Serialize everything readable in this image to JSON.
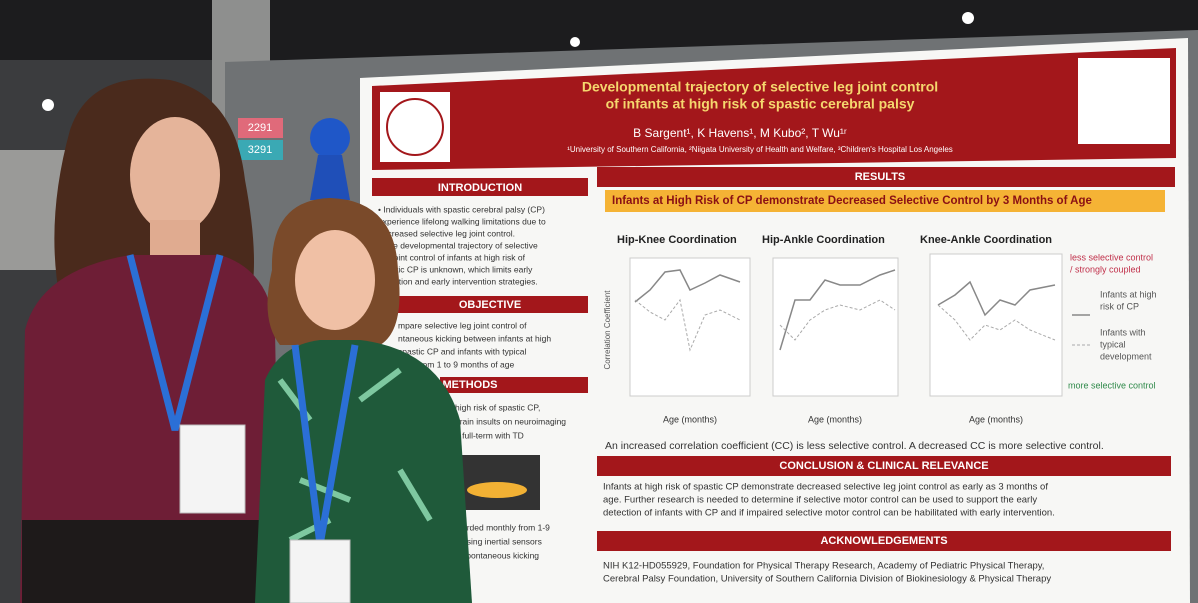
{
  "booth_numbers": [
    "2291",
    "3291"
  ],
  "poster": {
    "title": [
      "Developmental trajectory of selective leg joint control",
      "of infants at high risk of spastic cerebral palsy"
    ],
    "authors": "B Sargent¹, K Havens¹, M Kubo², T Wu¹ʳ",
    "affiliations": "¹University of Southern California, ²Niigata University of Health and Welfare, ³Children's Hospital Los Angeles",
    "introduction": {
      "heading": "INTRODUCTION",
      "lines": [
        "• Individuals with spastic cerebral palsy (CP)",
        "experience lifelong walking limitations due to",
        "decreased selective leg joint control.",
        "• The developmental trajectory of selective",
        "leg joint control of infants at high risk of",
        "spastic CP is unknown, which limits early",
        "detection and early intervention strategies."
      ]
    },
    "objective": {
      "heading": "OBJECTIVE",
      "lines": [
        "mpare selective leg joint control of",
        "ntaneous kicking between infants at high",
        "spastic CP and infants with typical",
        "(TD) from 1 to 9 months of age"
      ]
    },
    "methods": {
      "heading": "METHODS",
      "lines": [
        "high risk of spastic CP,",
        "brain insults on neuroimaging",
        "n full-term with TD"
      ],
      "lines_after_image": [
        "orded monthly from 1-9",
        "using inertial sensors",
        "spontaneous kicking"
      ]
    },
    "results": {
      "heading": "RESULTS",
      "banner": "Infants at High Risk of CP demonstrate Decreased Selective Control by 3 Months of Age",
      "plot_titles": [
        "Hip-Knee Coordination",
        "Hip-Ankle Coordination",
        "Knee-Ankle Coordination"
      ],
      "y_label": "Correlation Coefficient",
      "x_label": "Age (months)",
      "legend": {
        "less": [
          "less selective control",
          "/ strongly coupled"
        ],
        "high_risk": [
          "Infants at high",
          "risk of CP"
        ],
        "typical": [
          "Infants with",
          "typical",
          "development"
        ],
        "more": "more selective control"
      },
      "caption": "An increased correlation coefficient (CC) is less selective control. A decreased CC is more selective control."
    },
    "conclusion": {
      "heading": "CONCLUSION & CLINICAL RELEVANCE",
      "lines": [
        "Infants at high risk of spastic CP demonstrate decreased selective leg joint control as early as 3 months of",
        "age. Further research is needed to determine if selective motor control can be used to support the early",
        "detection of infants with CP and if impaired selective motor control can be habilitated with early intervention."
      ]
    },
    "acknowledgements": {
      "heading": "ACKNOWLEDGEMENTS",
      "lines": [
        "NIH K12-HD055929, Foundation for Physical Therapy Research, Academy of Pediatric Physical Therapy,",
        "Cerebral Palsy Foundation, University of Southern California Division of Biokinesiology & Physical Therapy"
      ]
    }
  }
}
